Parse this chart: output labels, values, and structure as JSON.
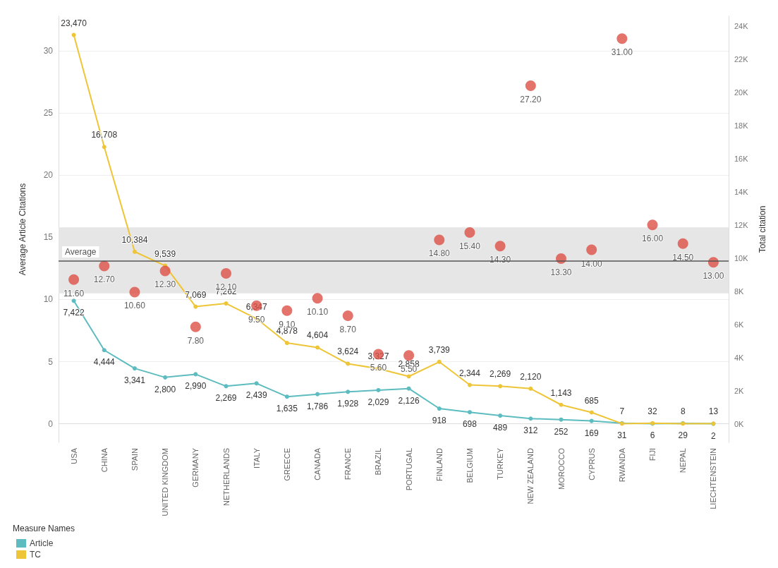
{
  "chart_data": {
    "type": "line",
    "ylabel": "Average Article Citations",
    "y2label": "Total citation",
    "legend_title": "Measure Names",
    "categories": [
      "USA",
      "CHINA",
      "SPAIN",
      "UNITED KINGDOM",
      "GERMANY",
      "NETHERLANDS",
      "ITALY",
      "GREECE",
      "CANADA",
      "FRANCE",
      "BRAZIL",
      "PORTUGAL",
      "FINLAND",
      "BELGIUM",
      "TURKEY",
      "NEW ZEALAND",
      "MOROCCO",
      "CYPRUS",
      "RWANDA",
      "FIJI",
      "NEPAL",
      "LIECHTENSTEIN"
    ],
    "series": [
      {
        "name": "Article",
        "axis": "y2",
        "color": "#5dbcbf",
        "values": [
          7422,
          4444,
          3341,
          2800,
          2990,
          2269,
          2439,
          1635,
          1786,
          1928,
          2029,
          2126,
          918,
          698,
          489,
          312,
          252,
          169,
          31,
          6,
          29,
          2
        ],
        "value_labels": [
          "7,422",
          "4,444",
          "3,341",
          "2,800",
          "2,990",
          "2,269",
          "2,439",
          "1,635",
          "1,786",
          "1,928",
          "2,029",
          "2,126",
          "918",
          "698",
          "489",
          "312",
          "252",
          "169",
          "31",
          "6",
          "29",
          "2"
        ]
      },
      {
        "name": "TC",
        "axis": "y2",
        "color": "#eec536",
        "values": [
          23470,
          16708,
          10384,
          9539,
          7069,
          7262,
          6347,
          4878,
          4604,
          3624,
          3327,
          2858,
          3739,
          2344,
          2269,
          2120,
          1143,
          685,
          7,
          32,
          8,
          13
        ],
        "value_labels": [
          "23,470",
          "16,708",
          "10,384",
          "9,539",
          "7,069",
          "7,262",
          "6,347",
          "4,878",
          "4,604",
          "3,624",
          "3,327",
          "2,858",
          "3,739",
          "2,344",
          "2,269",
          "2,120",
          "1,143",
          "685",
          "7",
          "32",
          "8",
          "13"
        ]
      },
      {
        "type": "scatter",
        "color": "#dc5046",
        "values": [
          11.6,
          12.7,
          10.6,
          12.3,
          7.8,
          12.1,
          9.5,
          9.1,
          10.1,
          8.7,
          5.6,
          5.5,
          14.8,
          15.4,
          14.3,
          27.2,
          13.3,
          14.0,
          31.0,
          16.0,
          14.5,
          13.0
        ],
        "value_labels": [
          "11.60",
          "12.70",
          "10.60",
          "12.30",
          "7.80",
          "12.10",
          "9.50",
          "9.10",
          "10.10",
          "8.70",
          "5.60",
          "5.50",
          "14.80",
          "15.40",
          "14.30",
          "27.20",
          "13.30",
          "14.00",
          "31.00",
          "16.00",
          "14.50",
          "13.00"
        ]
      }
    ],
    "ylim": [
      -1.5,
      32.8
    ],
    "yticks": [
      0,
      5,
      10,
      15,
      20,
      25,
      30
    ],
    "y2lim": [
      -1125,
      24600
    ],
    "y2ticks": [
      {
        "value": 0,
        "label": "0K"
      },
      {
        "value": 2000,
        "label": "2K"
      },
      {
        "value": 4000,
        "label": "4K"
      },
      {
        "value": 6000,
        "label": "6K"
      },
      {
        "value": 8000,
        "label": "8K"
      },
      {
        "value": 10000,
        "label": "10K"
      },
      {
        "value": 12000,
        "label": "12K"
      },
      {
        "value": 14000,
        "label": "14K"
      },
      {
        "value": 16000,
        "label": "16K"
      },
      {
        "value": 18000,
        "label": "18K"
      },
      {
        "value": 20000,
        "label": "20K"
      },
      {
        "value": 22000,
        "label": "22K"
      },
      {
        "value": 24000,
        "label": "24K"
      }
    ],
    "ref_lines": [
      {
        "axis": "y",
        "value": 13.1,
        "label": "Average",
        "color": "#555555"
      }
    ],
    "bands": [
      {
        "axis": "y",
        "from": 10.5,
        "to": 15.8,
        "color": "#e6e6e6"
      }
    ],
    "grid": "y",
    "legend": "bottom left",
    "marker": "circle"
  }
}
